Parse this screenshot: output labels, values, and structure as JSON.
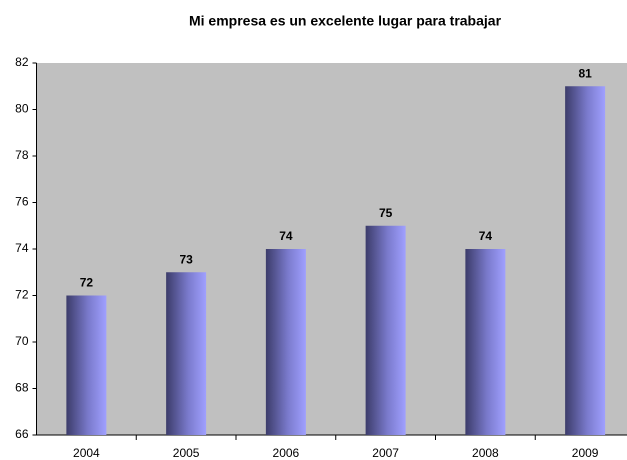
{
  "chart_data": {
    "type": "bar",
    "title": "Mi empresa es un excelente lugar para trabajar",
    "categories": [
      "2004",
      "2005",
      "2006",
      "2007",
      "2008",
      "2009"
    ],
    "values": [
      72,
      73,
      74,
      75,
      74,
      81
    ],
    "color": "#9999ff",
    "ylim": [
      66,
      82
    ],
    "yticks": [
      66,
      68,
      70,
      72,
      74,
      76,
      78,
      80,
      82
    ],
    "grid": false,
    "data_labels": true
  }
}
